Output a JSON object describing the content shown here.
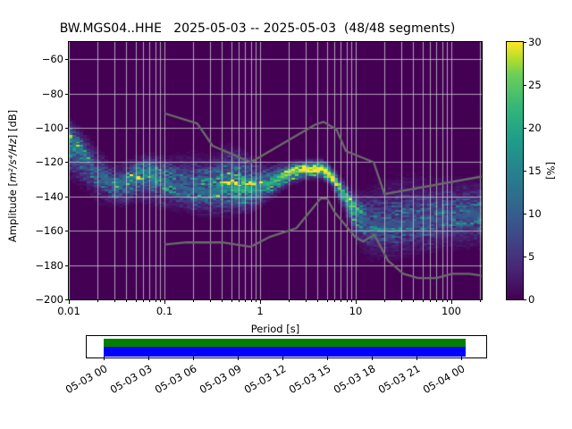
{
  "title": "BW.MGS04..HHE   2025-05-03 -- 2025-05-03  (48/48 segments)",
  "x_axis": {
    "label": "Period [s]",
    "tick_labels": [
      "0.01",
      "0.1",
      "1",
      "10",
      "100"
    ]
  },
  "y_axis": {
    "label_prefix": "Amplitude [",
    "label_math": "m²/s⁴/Hz",
    "label_suffix": "] [dB]",
    "tick_labels": [
      "−60",
      "−80",
      "−100",
      "−120",
      "−140",
      "−160",
      "−180",
      "−200"
    ]
  },
  "colorbar": {
    "label": "[%]",
    "tick_labels": [
      "0",
      "5",
      "10",
      "15",
      "20",
      "25",
      "30"
    ]
  },
  "timeline": {
    "coverage_color": "#008000",
    "extent_color": "#0000ff",
    "tick_labels": [
      "05-03 00",
      "05-03 03",
      "05-03 06",
      "05-03 09",
      "05-03 12",
      "05-03 15",
      "05-03 18",
      "05-03 21",
      "05-04 00"
    ]
  },
  "chart_data": {
    "type": "heatmap",
    "title": "BW.MGS04..HHE   2025-05-03 -- 2025-05-03  (48/48 segments)",
    "xlabel": "Period [s]",
    "ylabel": "Amplitude [m²/s⁴/Hz] [dB]",
    "xscale": "log",
    "xlim": [
      0.01,
      208
    ],
    "ylim": [
      -200,
      -50
    ],
    "x_ticks": [
      0.01,
      0.1,
      1,
      10,
      100
    ],
    "y_ticks": [
      -60,
      -80,
      -100,
      -120,
      -140,
      -160,
      -180,
      -200
    ],
    "grid": true,
    "background_color": "#440154",
    "colorbar": {
      "label": "[%]",
      "min": 0,
      "max": 30,
      "ticks": [
        0,
        5,
        10,
        15,
        20,
        25,
        30
      ]
    },
    "colormap_stops": [
      [
        0,
        "#440154"
      ],
      [
        0.125,
        "#482878"
      ],
      [
        0.25,
        "#3e4a89"
      ],
      [
        0.375,
        "#31688e"
      ],
      [
        0.5,
        "#26828e"
      ],
      [
        0.625,
        "#1f9e89"
      ],
      [
        0.75,
        "#35b779"
      ],
      [
        0.875,
        "#6ece58"
      ],
      [
        0.9375,
        "#b5de2b"
      ],
      [
        1,
        "#fde725"
      ]
    ],
    "psd_mode_distribution": {
      "comment": "probability density ridge of the PPSD histogram: mode line, peak probability (%) and vertical spread (dB) vs period (s)",
      "period_s": [
        0.01,
        0.014,
        0.02,
        0.03,
        0.04,
        0.055,
        0.07,
        0.1,
        0.14,
        0.2,
        0.3,
        0.45,
        0.65,
        0.9,
        1.3,
        2.0,
        3.0,
        4.5,
        5.5,
        7.0,
        8.5,
        10,
        13,
        18,
        25,
        40,
        60,
        90,
        130,
        200
      ],
      "mode_db": [
        -107,
        -116,
        -127,
        -134,
        -132,
        -126,
        -125,
        -131,
        -135,
        -137,
        -138,
        -135,
        -136,
        -136,
        -132,
        -127,
        -124.5,
        -124.5,
        -128,
        -136,
        -143,
        -150,
        -155,
        -157,
        -157,
        -156,
        -155,
        -153,
        -152,
        -151
      ],
      "peak_percent": [
        16,
        12,
        10,
        11,
        13,
        16,
        14,
        12,
        10,
        11,
        12,
        16,
        20,
        16,
        20,
        26,
        30,
        30,
        28,
        24,
        20,
        14,
        9,
        8,
        8,
        8,
        8,
        8,
        9,
        9
      ],
      "spread_up_db": [
        5,
        6,
        6,
        5,
        5,
        4,
        4,
        6,
        8,
        9,
        9,
        10,
        9,
        7,
        4,
        3,
        2.5,
        2.5,
        2.5,
        3,
        3.5,
        5,
        8,
        11,
        12,
        12,
        11,
        10,
        9,
        9
      ],
      "spread_down_db": [
        9,
        8,
        7,
        5,
        6,
        7,
        8,
        7,
        6,
        6,
        6,
        7,
        6,
        5,
        4,
        3,
        2.5,
        2.5,
        3,
        4,
        5,
        7,
        9,
        9,
        9,
        8,
        8,
        8,
        8,
        8
      ]
    },
    "noise_models": {
      "color": "#6b6b6b",
      "nhnm_period_db": [
        [
          0.1,
          -91.5
        ],
        [
          0.22,
          -97.4
        ],
        [
          0.32,
          -110.5
        ],
        [
          0.8,
          -120.0
        ],
        [
          3.8,
          -98.0
        ],
        [
          4.6,
          -96.5
        ],
        [
          6.3,
          -101.0
        ],
        [
          7.9,
          -113.5
        ],
        [
          15.4,
          -120.0
        ],
        [
          20.0,
          -138.5
        ],
        [
          354.8,
          -126.0
        ]
      ],
      "nlnm_period_db": [
        [
          0.1,
          -168.0
        ],
        [
          0.17,
          -166.7
        ],
        [
          0.4,
          -166.7
        ],
        [
          0.8,
          -169.2
        ],
        [
          1.24,
          -163.7
        ],
        [
          2.4,
          -158.4
        ],
        [
          4.3,
          -141.1
        ],
        [
          5.0,
          -141.1
        ],
        [
          6.0,
          -149.0
        ],
        [
          10.0,
          -163.8
        ],
        [
          12.0,
          -166.2
        ],
        [
          15.6,
          -162.1
        ],
        [
          21.9,
          -177.5
        ],
        [
          31.6,
          -185.0
        ],
        [
          45.0,
          -187.5
        ],
        [
          70.0,
          -187.5
        ],
        [
          101.0,
          -185.0
        ],
        [
          154.0,
          -185.0
        ],
        [
          328.0,
          -187.5
        ]
      ]
    }
  }
}
